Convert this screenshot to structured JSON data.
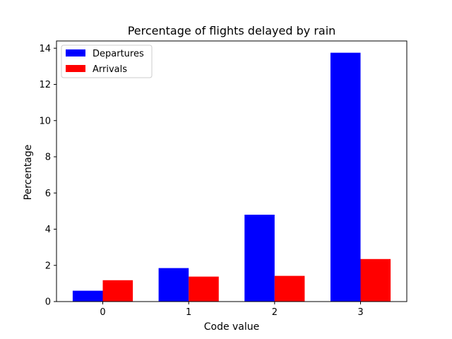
{
  "chart_data": {
    "type": "bar",
    "title": "Percentage of flights delayed by rain",
    "xlabel": "Code value",
    "ylabel": "Percentage",
    "categories": [
      "0",
      "1",
      "2",
      "3"
    ],
    "ylim": [
      0,
      14.4
    ],
    "yticks": [
      "0",
      "2",
      "4",
      "6",
      "8",
      "10",
      "12",
      "14"
    ],
    "grid": false,
    "legend_position": "top-left",
    "series": [
      {
        "name": "Departures",
        "color": "#0000ff",
        "values": [
          0.6,
          1.85,
          4.8,
          13.75
        ]
      },
      {
        "name": "Arrivals",
        "color": "#ff0000",
        "values": [
          1.18,
          1.38,
          1.42,
          2.35
        ]
      }
    ]
  }
}
